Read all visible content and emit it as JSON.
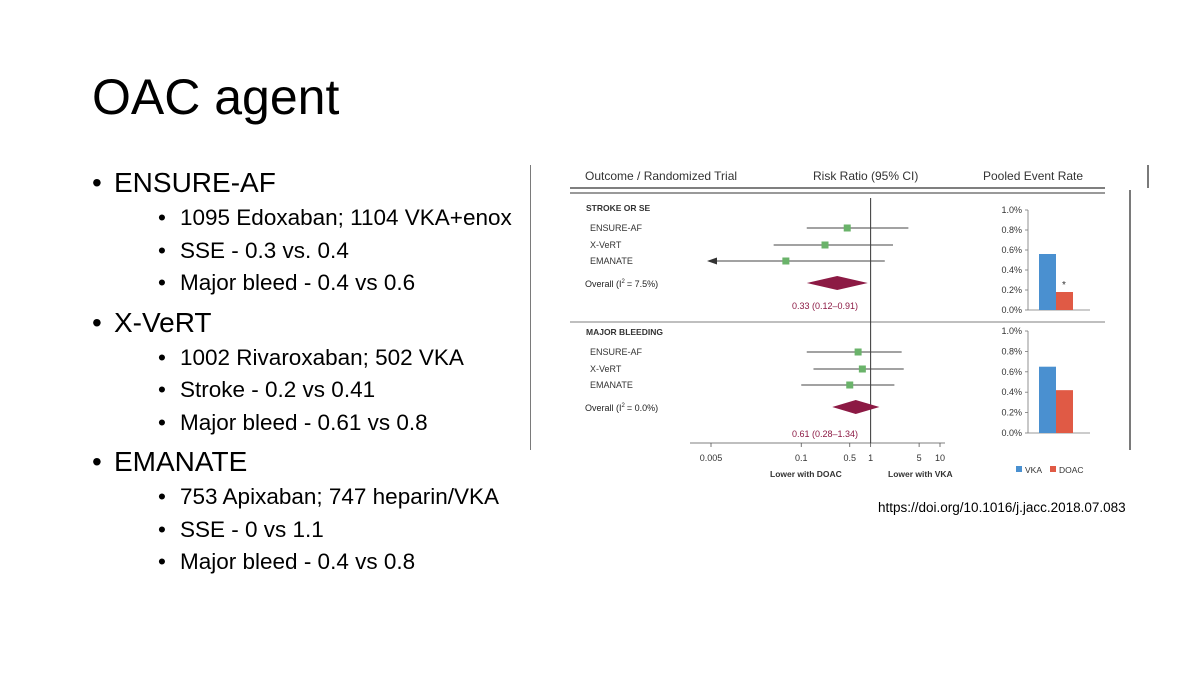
{
  "slide": {
    "title": "OAC agent",
    "citation": "https://doi.org/10.1016/j.jacc.2018.07.083"
  },
  "trials": [
    {
      "name": "ENSURE-AF",
      "details": [
        "1095 Edoxaban; 1104 VKA+enox",
        "SSE - 0.3 vs. 0.4",
        "Major bleed - 0.4 vs 0.6"
      ]
    },
    {
      "name": "X-VeRT",
      "details": [
        "1002 Rivaroxaban; 502 VKA",
        "Stroke - 0.2 vs 0.41",
        "Major bleed - 0.61 vs 0.8"
      ]
    },
    {
      "name": "EMANATE",
      "details": [
        "753 Apixaban; 747 heparin/VKA",
        "SSE - 0 vs 1.1",
        "Major bleed - 0.4 vs 0.8"
      ]
    }
  ],
  "chart_data": [
    {
      "type": "forest",
      "headers": {
        "trial": "Outcome / Randomized Trial",
        "rr": "Risk Ratio (95% CI)",
        "rate": "Pooled Event Rate"
      },
      "x_scale": "log",
      "x_range": [
        0.005,
        10
      ],
      "x_ticks": [
        "0.005",
        "0.1",
        "0.5",
        "1",
        "5",
        "10"
      ],
      "x_tick_values": [
        0.005,
        0.1,
        0.5,
        1,
        5,
        10
      ],
      "reference_line": 1,
      "x_label_left": "Lower with DOAC",
      "x_label_right": "Lower with VKA",
      "panels": [
        {
          "label": "STROKE OR SE",
          "studies": [
            {
              "name": "ENSURE-AF",
              "rr": 0.46,
              "lo": 0.12,
              "hi": 3.5,
              "arrow_left": false
            },
            {
              "name": "X-VeRT",
              "rr": 0.22,
              "lo": 0.04,
              "hi": 2.1,
              "arrow_left": false
            },
            {
              "name": "EMANATE",
              "rr": 0.06,
              "lo": 0.005,
              "hi": 1.6,
              "arrow_left": true
            }
          ],
          "overall_label": "Overall (I",
          "overall_i2": "= 7.5%)",
          "overall_rr": 0.33,
          "overall_lo": 0.12,
          "overall_hi": 0.91,
          "overall_text": "0.33 (0.12–0.91)"
        },
        {
          "label": "MAJOR BLEEDING",
          "studies": [
            {
              "name": "ENSURE-AF",
              "rr": 0.66,
              "lo": 0.12,
              "hi": 2.8,
              "arrow_left": false
            },
            {
              "name": "X-VeRT",
              "rr": 0.76,
              "lo": 0.15,
              "hi": 3.0,
              "arrow_left": false
            },
            {
              "name": "EMANATE",
              "rr": 0.5,
              "lo": 0.1,
              "hi": 2.2,
              "arrow_left": false
            }
          ],
          "overall_label": "Overall (I",
          "overall_i2": "= 0.0%)",
          "overall_rr": 0.61,
          "overall_lo": 0.28,
          "overall_hi": 1.34,
          "overall_text": "0.61 (0.28–1.34)"
        }
      ]
    },
    {
      "type": "bar",
      "title": "Pooled Event Rate",
      "categories": [
        "STROKE OR SE",
        "MAJOR BLEEDING"
      ],
      "ylim": [
        0,
        1.0
      ],
      "y_ticks": [
        "1.0%",
        "0.8%",
        "0.6%",
        "0.4%",
        "0.2%",
        "0.0%"
      ],
      "y_tick_values": [
        1.0,
        0.8,
        0.6,
        0.4,
        0.2,
        0.0
      ],
      "series": [
        {
          "name": "VKA",
          "color": "#4a90d0",
          "values": [
            0.56,
            0.65
          ]
        },
        {
          "name": "DOAC",
          "color": "#e05a45",
          "values": [
            0.18,
            0.42
          ]
        }
      ],
      "annotations": [
        "*",
        ""
      ]
    }
  ],
  "colors": {
    "marker": "#6ab36a",
    "diamond": "#8c1a44",
    "ci_text": "#8c1a44",
    "axis": "#555555"
  }
}
